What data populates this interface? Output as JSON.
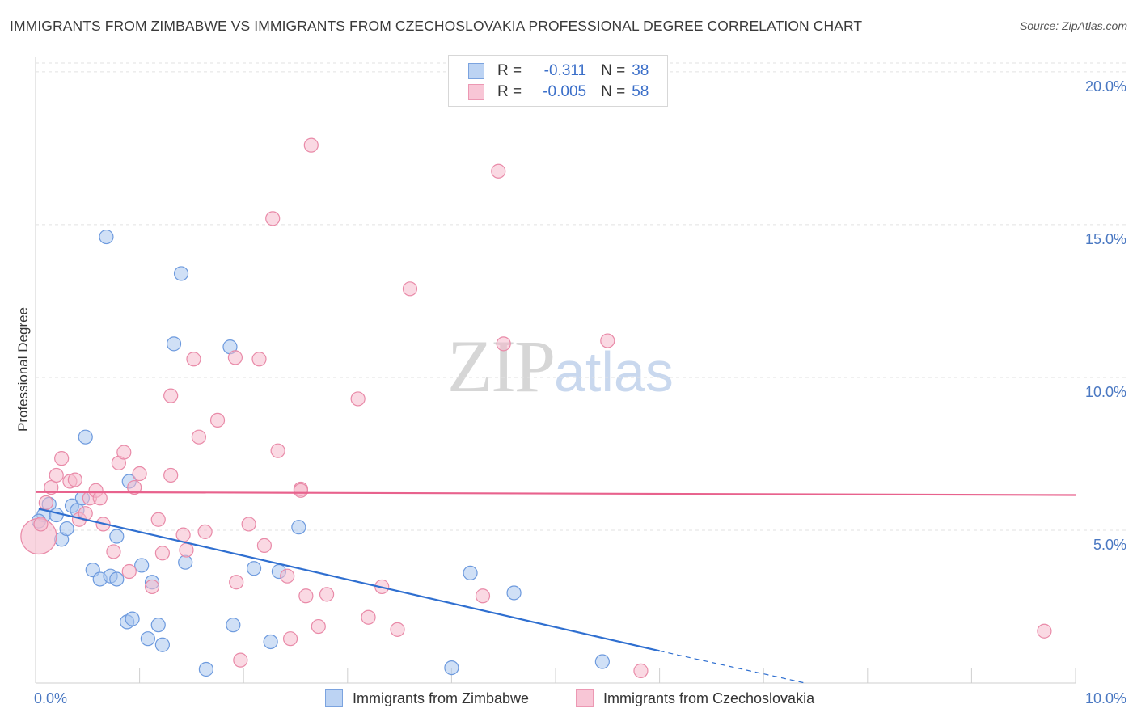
{
  "source": "Source: ZipAtlas.com",
  "watermark": {
    "zip": "ZIP",
    "atlas": "atlas"
  },
  "colors": {
    "blue_fill": "#a9c6ef",
    "blue_stroke": "#6d9ade",
    "blue_line": "#2f6fd0",
    "pink_fill": "#f5b9cc",
    "pink_stroke": "#e98aa8",
    "pink_line": "#e8628d",
    "grid": "#e2e2e2",
    "tick_text": "#4a78c2"
  },
  "legend": {
    "rows": [
      {
        "r_label": "R =",
        "r_value": "-0.311",
        "n_label": "N =",
        "n_value": "38"
      },
      {
        "r_label": "R =",
        "r_value": "-0.005",
        "n_label": "N =",
        "n_value": "58"
      }
    ]
  },
  "chart_data": {
    "type": "scatter",
    "title": "IMMIGRANTS FROM ZIMBABWE VS IMMIGRANTS FROM CZECHOSLOVAKIA PROFESSIONAL DEGREE CORRELATION CHART",
    "xlabel": "",
    "ylabel": "Professional Degree",
    "xlim": [
      0,
      10
    ],
    "ylim": [
      0,
      20.5
    ],
    "x_ticks": [
      {
        "value": 0,
        "label": "0.0%"
      },
      {
        "value": 10,
        "label": "10.0%"
      }
    ],
    "y_ticks": [
      {
        "value": 5,
        "label": "5.0%"
      },
      {
        "value": 10,
        "label": "10.0%"
      },
      {
        "value": 15,
        "label": "15.0%"
      },
      {
        "value": 20,
        "label": "20.0%"
      }
    ],
    "x_minor_ticks": [
      0,
      1,
      2,
      3,
      4,
      5,
      6,
      7,
      8,
      9,
      10
    ],
    "grid": true,
    "series": [
      {
        "name": "Immigrants from Zimbabwe",
        "color": "blue",
        "points": [
          [
            0.08,
            5.5
          ],
          [
            0.13,
            5.85
          ],
          [
            0.2,
            5.5
          ],
          [
            0.25,
            4.7
          ],
          [
            0.3,
            5.05
          ],
          [
            0.35,
            5.8
          ],
          [
            0.4,
            5.65
          ],
          [
            0.45,
            6.05
          ],
          [
            0.48,
            8.05
          ],
          [
            0.55,
            3.7
          ],
          [
            0.62,
            3.4
          ],
          [
            0.68,
            14.6
          ],
          [
            0.72,
            3.5
          ],
          [
            0.78,
            3.4
          ],
          [
            0.78,
            4.8
          ],
          [
            0.88,
            2.0
          ],
          [
            0.9,
            6.6
          ],
          [
            0.93,
            2.1
          ],
          [
            1.02,
            3.85
          ],
          [
            1.08,
            1.45
          ],
          [
            1.12,
            3.3
          ],
          [
            1.18,
            1.9
          ],
          [
            1.22,
            1.25
          ],
          [
            1.33,
            11.1
          ],
          [
            1.4,
            13.4
          ],
          [
            1.44,
            3.95
          ],
          [
            1.64,
            0.45
          ],
          [
            1.87,
            11.0
          ],
          [
            1.9,
            1.9
          ],
          [
            2.1,
            3.75
          ],
          [
            2.26,
            1.35
          ],
          [
            2.34,
            3.65
          ],
          [
            2.53,
            5.1
          ],
          [
            4.0,
            0.5
          ],
          [
            4.18,
            3.6
          ],
          [
            4.6,
            2.95
          ],
          [
            5.45,
            0.7
          ],
          [
            0.03,
            5.3
          ]
        ],
        "trend": {
          "x": [
            0.03,
            6.0
          ],
          "y": [
            5.7,
            1.05
          ],
          "dash_x": [
            6.0,
            7.4
          ],
          "dash_y": [
            1.05,
            0.0
          ]
        }
      },
      {
        "name": "Immigrants from Czechoslovakia",
        "color": "pink",
        "points": [
          [
            0.03,
            4.8
          ],
          [
            0.05,
            5.2
          ],
          [
            0.1,
            5.9
          ],
          [
            0.15,
            6.4
          ],
          [
            0.2,
            6.8
          ],
          [
            0.25,
            7.35
          ],
          [
            0.33,
            6.6
          ],
          [
            0.38,
            6.65
          ],
          [
            0.42,
            5.35
          ],
          [
            0.48,
            5.55
          ],
          [
            0.52,
            6.05
          ],
          [
            0.58,
            6.3
          ],
          [
            0.62,
            6.05
          ],
          [
            0.65,
            5.2
          ],
          [
            0.75,
            4.3
          ],
          [
            0.8,
            7.2
          ],
          [
            0.85,
            7.55
          ],
          [
            0.9,
            3.65
          ],
          [
            0.95,
            6.4
          ],
          [
            1.0,
            6.85
          ],
          [
            1.12,
            3.15
          ],
          [
            1.18,
            5.35
          ],
          [
            1.22,
            4.25
          ],
          [
            1.3,
            9.4
          ],
          [
            1.3,
            6.8
          ],
          [
            1.42,
            4.85
          ],
          [
            1.45,
            4.35
          ],
          [
            1.52,
            10.6
          ],
          [
            1.57,
            8.05
          ],
          [
            1.63,
            4.95
          ],
          [
            1.75,
            8.6
          ],
          [
            1.92,
            10.65
          ],
          [
            1.93,
            3.3
          ],
          [
            1.97,
            0.75
          ],
          [
            2.05,
            5.2
          ],
          [
            2.15,
            10.6
          ],
          [
            2.2,
            4.5
          ],
          [
            2.28,
            15.2
          ],
          [
            2.33,
            7.6
          ],
          [
            2.42,
            3.5
          ],
          [
            2.45,
            1.45
          ],
          [
            2.55,
            6.35
          ],
          [
            2.55,
            6.3
          ],
          [
            2.6,
            2.85
          ],
          [
            2.65,
            17.6
          ],
          [
            2.72,
            1.85
          ],
          [
            2.8,
            2.9
          ],
          [
            3.1,
            9.3
          ],
          [
            3.2,
            2.15
          ],
          [
            3.33,
            3.15
          ],
          [
            3.48,
            1.75
          ],
          [
            3.6,
            12.9
          ],
          [
            4.3,
            2.85
          ],
          [
            4.45,
            16.75
          ],
          [
            4.5,
            11.1
          ],
          [
            5.5,
            11.2
          ],
          [
            5.82,
            0.4
          ],
          [
            9.7,
            1.7
          ]
        ],
        "trend": {
          "x": [
            0.0,
            10.0
          ],
          "y": [
            6.25,
            6.15
          ]
        }
      }
    ]
  }
}
